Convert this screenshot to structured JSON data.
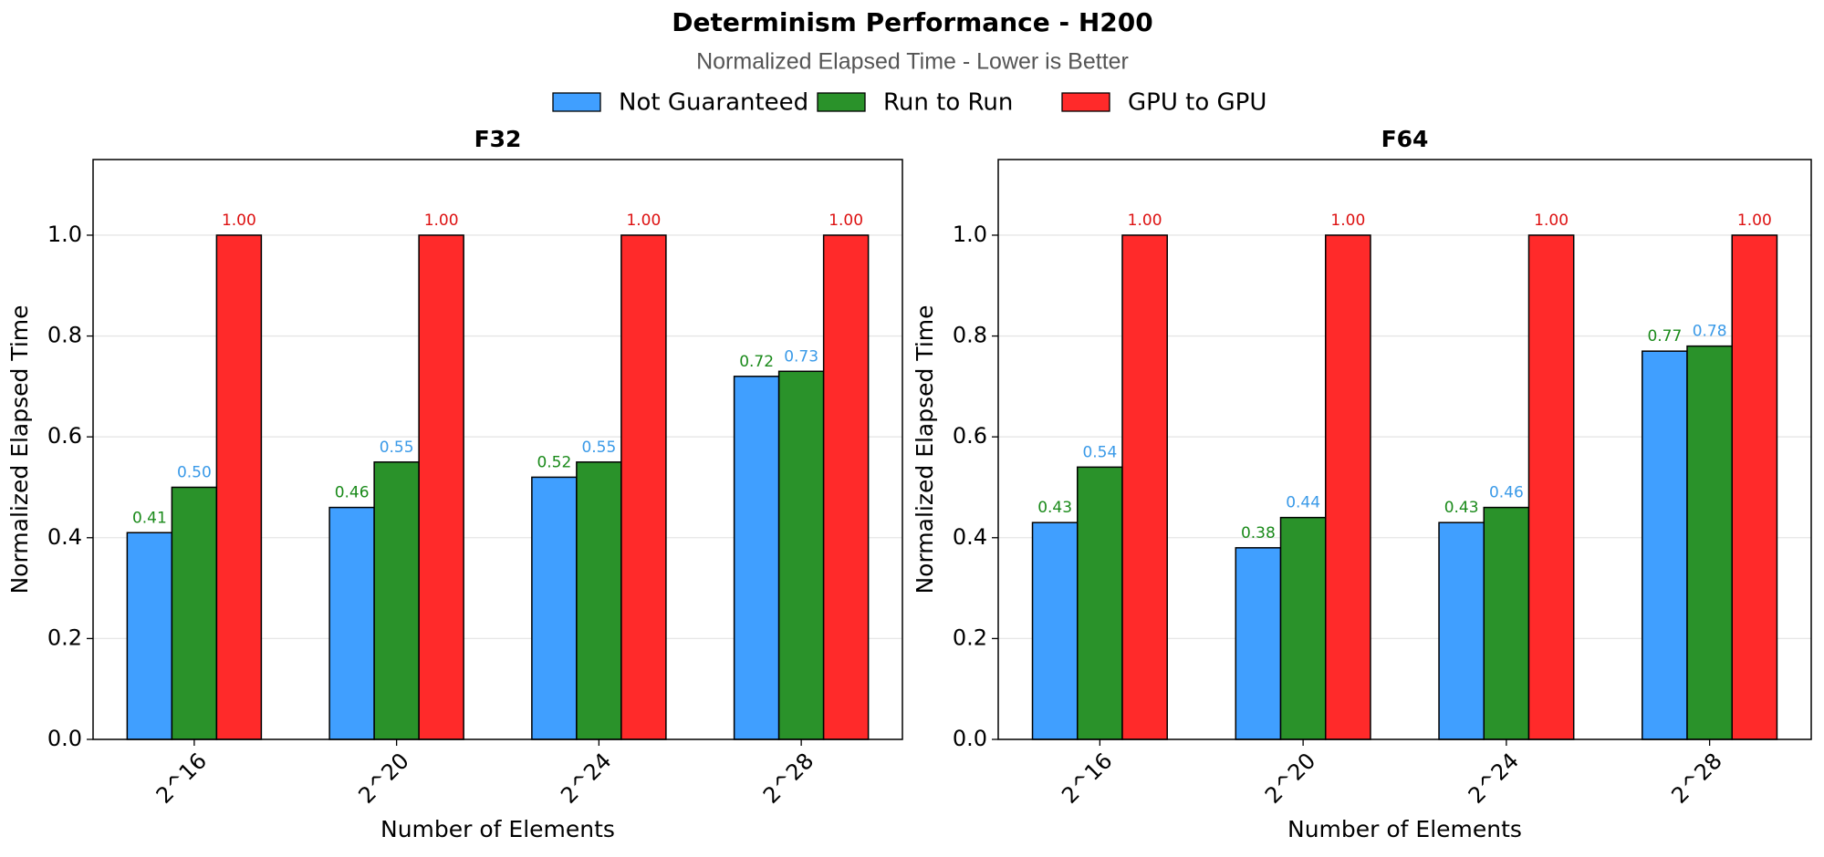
{
  "title": "Determinism Performance - H200",
  "subtitle": "Normalized Elapsed Time - Lower is Better",
  "chart_data": [
    {
      "type": "bar",
      "title": "F32",
      "xlabel": "Number of Elements",
      "ylabel": "Normalized Elapsed Time",
      "categories": [
        "2^16",
        "2^20",
        "2^24",
        "2^28"
      ],
      "ylim": [
        0,
        1.15
      ],
      "yticks": [
        {
          "value": 0,
          "label": "0.0"
        },
        0.2,
        0.4,
        0.6,
        0.8,
        {
          "value": 1,
          "label": "1.0"
        }
      ],
      "grid": true,
      "series": [
        {
          "name": "Not Guaranteed",
          "color": "#409fff",
          "label_color": "#1a8a1a",
          "values": [
            0.41,
            0.46,
            0.52,
            0.72
          ],
          "value_labels": [
            "0.41",
            "0.46",
            "0.52",
            "0.72"
          ]
        },
        {
          "name": "Run to Run",
          "color": "#2a922a",
          "label_color": "#3a9ae8",
          "values": [
            0.5,
            0.55,
            0.55,
            0.73
          ],
          "value_labels": [
            "0.50",
            "0.55",
            "0.55",
            "0.73"
          ]
        },
        {
          "name": "GPU to GPU",
          "color": "#ff2a2a",
          "label_color": "#dd1111",
          "values": [
            1,
            1,
            1,
            1
          ],
          "value_labels": [
            "1.00",
            "1.00",
            "1.00",
            "1.00"
          ]
        }
      ]
    },
    {
      "type": "bar",
      "title": "F64",
      "xlabel": "Number of Elements",
      "ylabel": "Normalized Elapsed Time",
      "categories": [
        "2^16",
        "2^20",
        "2^24",
        "2^28"
      ],
      "ylim": [
        0,
        1.15
      ],
      "yticks": [
        {
          "value": 0,
          "label": "0.0"
        },
        0.2,
        0.4,
        0.6,
        0.8,
        {
          "value": 1,
          "label": "1.0"
        }
      ],
      "grid": true,
      "series": [
        {
          "name": "Not Guaranteed",
          "color": "#409fff",
          "label_color": "#1a8a1a",
          "values": [
            0.43,
            0.38,
            0.43,
            0.77
          ],
          "value_labels": [
            "0.43",
            "0.38",
            "0.43",
            "0.77"
          ]
        },
        {
          "name": "Run to Run",
          "color": "#2a922a",
          "label_color": "#3a9ae8",
          "values": [
            0.54,
            0.44,
            0.46,
            0.78
          ],
          "value_labels": [
            "0.54",
            "0.44",
            "0.46",
            "0.78"
          ]
        },
        {
          "name": "GPU to GPU",
          "color": "#ff2a2a",
          "label_color": "#dd1111",
          "values": [
            1,
            1,
            1,
            1
          ],
          "value_labels": [
            "1.00",
            "1.00",
            "1.00",
            "1.00"
          ]
        }
      ]
    }
  ]
}
